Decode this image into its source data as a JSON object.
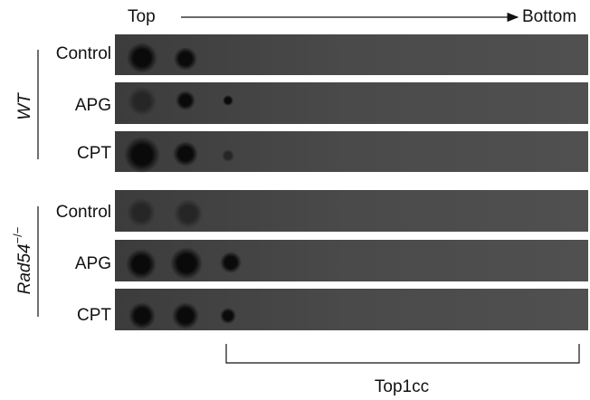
{
  "header": {
    "left": "Top",
    "right": "Bottom"
  },
  "groups": [
    {
      "label": {
        "name": "WT"
      },
      "rows": [
        "Control",
        "APG",
        "CPT"
      ]
    },
    {
      "label": {
        "name": "Rad54",
        "superscript": "−/−"
      },
      "rows": [
        "Control",
        "APG",
        "CPT"
      ]
    }
  ],
  "footer": {
    "label": "Top1cc"
  }
}
